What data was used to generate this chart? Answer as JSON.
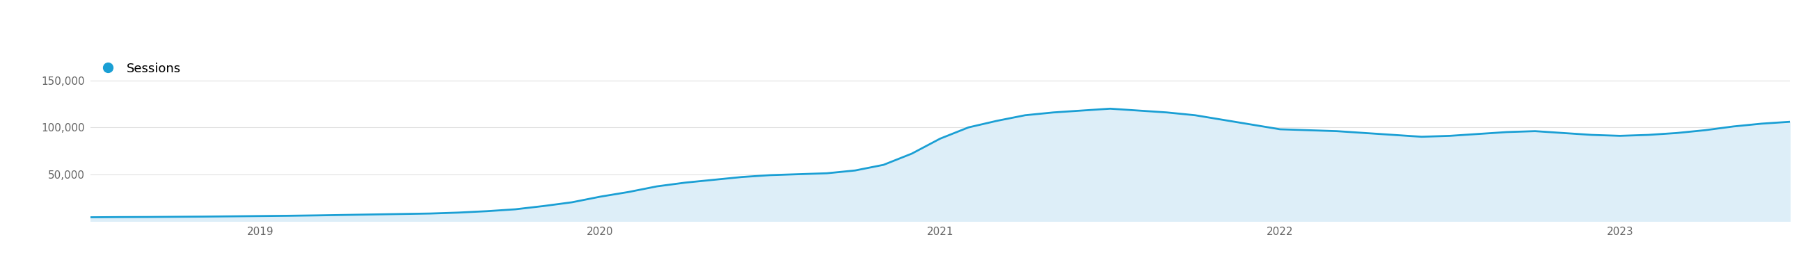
{
  "legend_label": "Sessions",
  "legend_dot_color": "#1a9fd4",
  "line_color": "#1a9fd4",
  "fill_color": "#ddeef8",
  "background_color": "#ffffff",
  "grid_color": "#e0e0e0",
  "tick_label_color": "#666666",
  "ylim": [
    0,
    175000
  ],
  "yticks": [
    50000,
    100000,
    150000
  ],
  "ytick_labels": [
    "50,000",
    "100,000",
    "150,000"
  ],
  "x_tick_labels": [
    "2019",
    "2020",
    "2021",
    "2022",
    "2023"
  ],
  "data_y": [
    4000,
    4200,
    4300,
    4500,
    4700,
    5000,
    5300,
    5600,
    6000,
    6500,
    7000,
    7500,
    8000,
    9000,
    10500,
    12500,
    16000,
    20000,
    26000,
    31000,
    37000,
    41000,
    44000,
    47000,
    49000,
    50000,
    51000,
    54000,
    60000,
    72000,
    88000,
    100000,
    107000,
    113000,
    116000,
    118000,
    120000,
    118000,
    116000,
    113000,
    108000,
    103000,
    98000,
    97000,
    96000,
    94000,
    92000,
    90000,
    91000,
    93000,
    95000,
    96000,
    94000,
    92000,
    91000,
    92000,
    94000,
    97000,
    101000,
    104000,
    106000
  ],
  "line_width": 2.0,
  "legend_fontsize": 13,
  "tick_fontsize": 11,
  "legend_marker_size": 12,
  "fig_bg": "#ffffff"
}
